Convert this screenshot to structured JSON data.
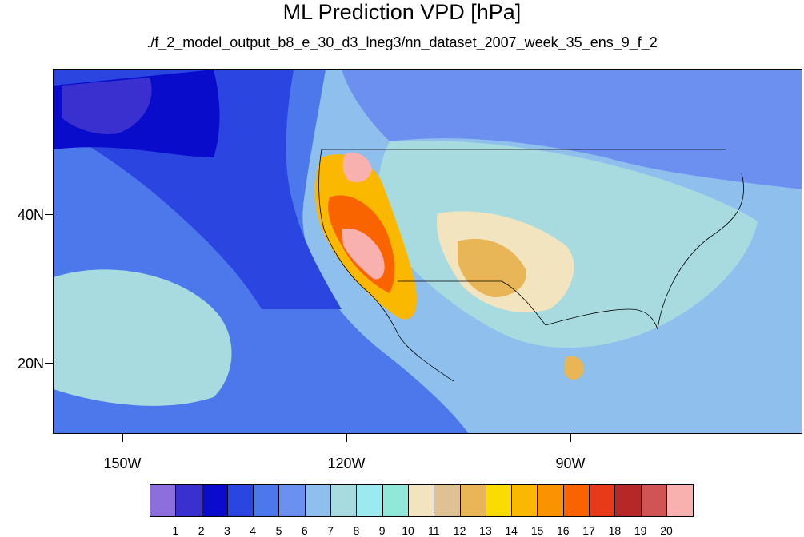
{
  "title": "ML Prediction VPD [hPa]",
  "subtitle": "./f_2_model_output_b8_e_30_d3_lneg3/nn_dataset_2007_week_35_ens_9_f_2",
  "lat_labels": [
    "40N",
    "20N"
  ],
  "lon_labels": [
    "150W",
    "120W",
    "90W"
  ],
  "colorbar": {
    "colors": [
      "#8d6fdc",
      "#3a2fcf",
      "#0a0ccc",
      "#2b46e0",
      "#4d78ec",
      "#6c90f0",
      "#8fbfec",
      "#a8dbe0",
      "#9ce9f0",
      "#90e8d8",
      "#f3e4c0",
      "#e0c194",
      "#e8b656",
      "#fadc00",
      "#fbb800",
      "#fa9300",
      "#fa6400",
      "#e63a18",
      "#b62828",
      "#d05454",
      "#f9b1b0"
    ],
    "labels": [
      "1",
      "2",
      "3",
      "4",
      "5",
      "6",
      "7",
      "8",
      "9",
      "10",
      "11",
      "12",
      "13",
      "14",
      "15",
      "16",
      "17",
      "18",
      "19",
      "20"
    ]
  }
}
